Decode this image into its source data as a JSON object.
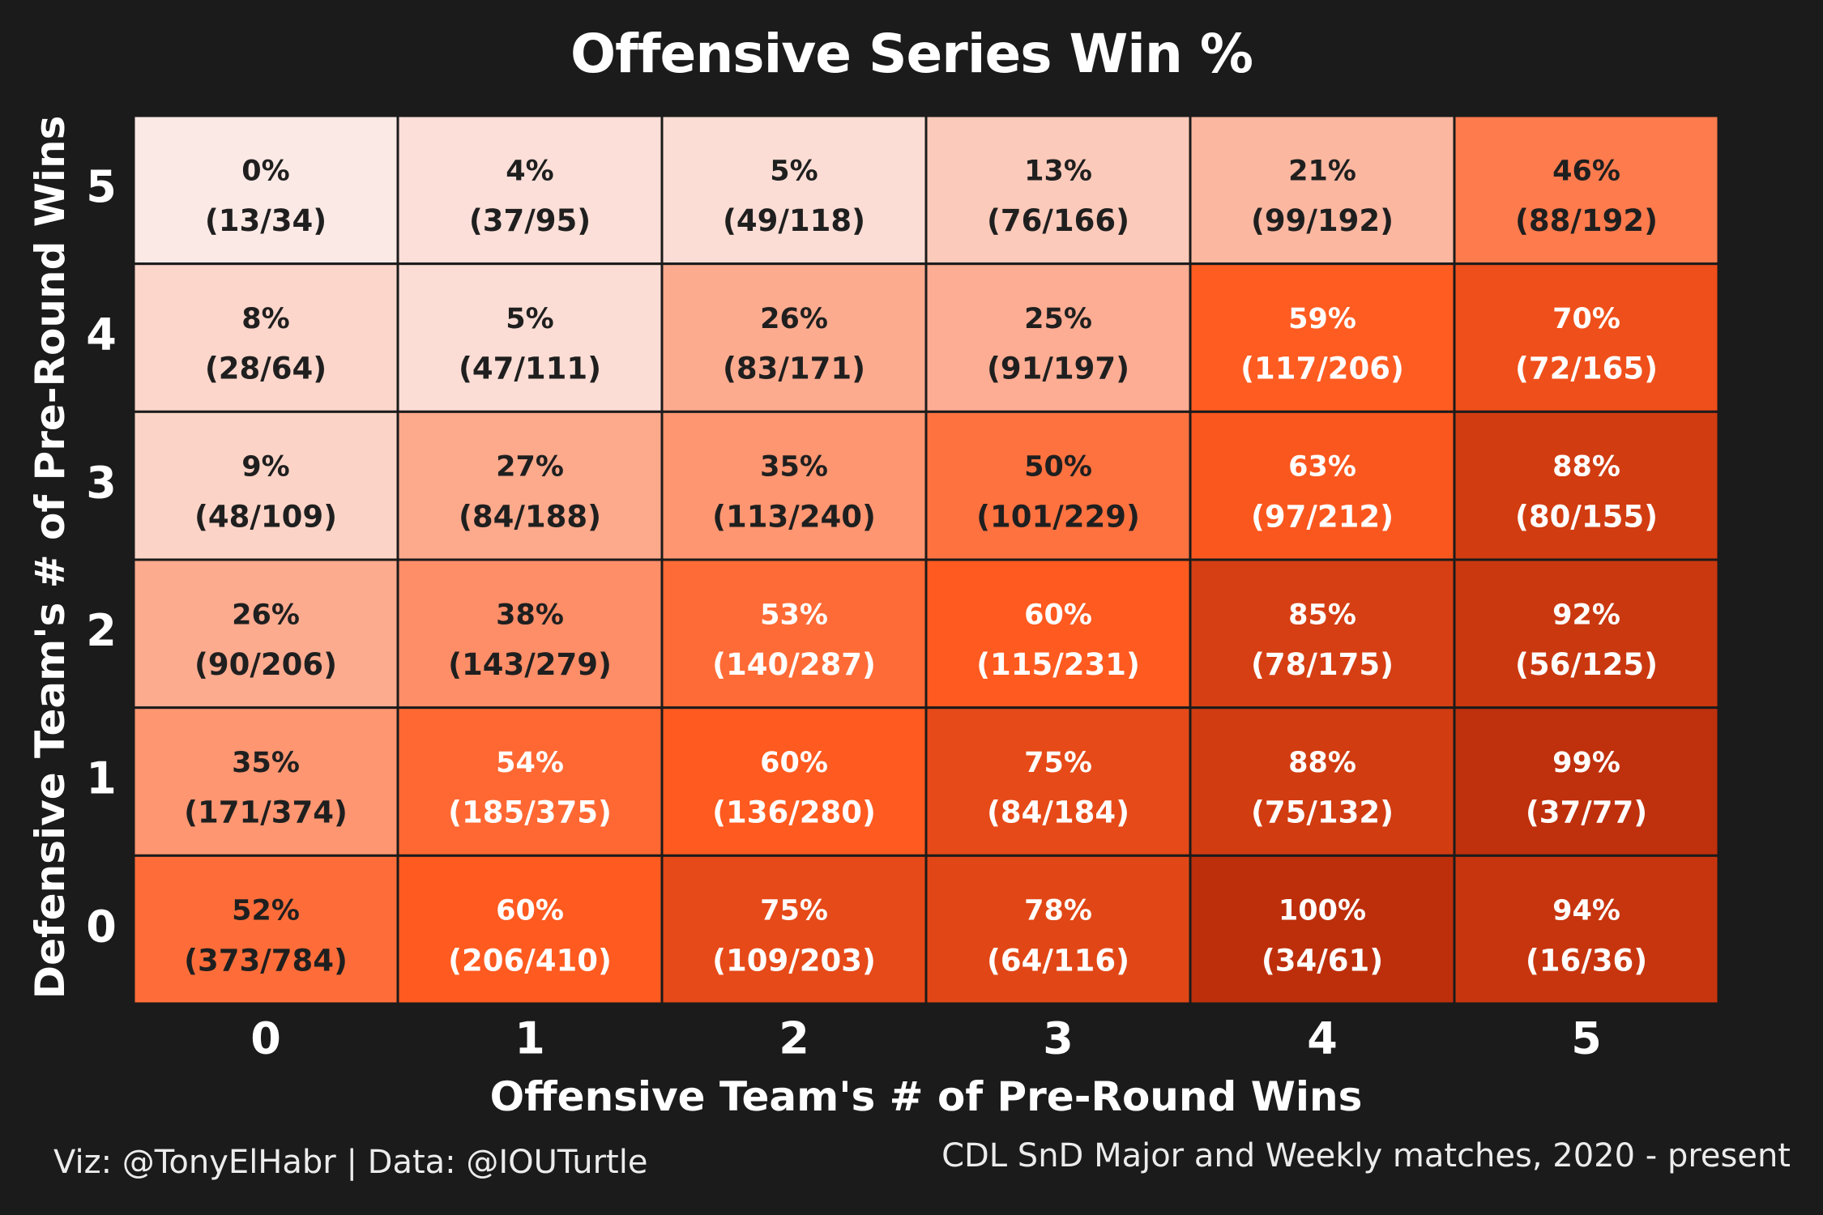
{
  "chart_data": {
    "type": "heatmap",
    "title": "Offensive Series Win %",
    "xlabel": "Offensive Team's # of Pre-Round Wins",
    "ylabel": "Defensive Team's # of Pre-Round Wins",
    "x_categories": [
      "0",
      "1",
      "2",
      "3",
      "4",
      "5"
    ],
    "y_categories": [
      "5",
      "4",
      "3",
      "2",
      "1",
      "0"
    ],
    "value_range": [
      0,
      100
    ],
    "color_scale": [
      "#fbe9e5",
      "#ff5a1f",
      "#bd2f0b"
    ],
    "cells": [
      [
        {
          "pct": 0,
          "label": "0%",
          "count": "(13/34)"
        },
        {
          "pct": 4,
          "label": "4%",
          "count": "(37/95)"
        },
        {
          "pct": 5,
          "label": "5%",
          "count": "(49/118)"
        },
        {
          "pct": 13,
          "label": "13%",
          "count": "(76/166)"
        },
        {
          "pct": 21,
          "label": "21%",
          "count": "(99/192)"
        },
        {
          "pct": 46,
          "label": "46%",
          "count": "(88/192)"
        }
      ],
      [
        {
          "pct": 8,
          "label": "8%",
          "count": "(28/64)"
        },
        {
          "pct": 5,
          "label": "5%",
          "count": "(47/111)"
        },
        {
          "pct": 26,
          "label": "26%",
          "count": "(83/171)"
        },
        {
          "pct": 25,
          "label": "25%",
          "count": "(91/197)"
        },
        {
          "pct": 59,
          "label": "59%",
          "count": "(117/206)"
        },
        {
          "pct": 70,
          "label": "70%",
          "count": "(72/165)"
        }
      ],
      [
        {
          "pct": 9,
          "label": "9%",
          "count": "(48/109)"
        },
        {
          "pct": 27,
          "label": "27%",
          "count": "(84/188)"
        },
        {
          "pct": 35,
          "label": "35%",
          "count": "(113/240)"
        },
        {
          "pct": 50,
          "label": "50%",
          "count": "(101/229)"
        },
        {
          "pct": 63,
          "label": "63%",
          "count": "(97/212)"
        },
        {
          "pct": 88,
          "label": "88%",
          "count": "(80/155)"
        }
      ],
      [
        {
          "pct": 26,
          "label": "26%",
          "count": "(90/206)"
        },
        {
          "pct": 38,
          "label": "38%",
          "count": "(143/279)"
        },
        {
          "pct": 53,
          "label": "53%",
          "count": "(140/287)"
        },
        {
          "pct": 60,
          "label": "60%",
          "count": "(115/231)"
        },
        {
          "pct": 85,
          "label": "85%",
          "count": "(78/175)"
        },
        {
          "pct": 92,
          "label": "92%",
          "count": "(56/125)"
        }
      ],
      [
        {
          "pct": 35,
          "label": "35%",
          "count": "(171/374)"
        },
        {
          "pct": 54,
          "label": "54%",
          "count": "(185/375)"
        },
        {
          "pct": 60,
          "label": "60%",
          "count": "(136/280)"
        },
        {
          "pct": 75,
          "label": "75%",
          "count": "(84/184)"
        },
        {
          "pct": 88,
          "label": "88%",
          "count": "(75/132)"
        },
        {
          "pct": 99,
          "label": "99%",
          "count": "(37/77)"
        }
      ],
      [
        {
          "pct": 52,
          "label": "52%",
          "count": "(373/784)"
        },
        {
          "pct": 60,
          "label": "60%",
          "count": "(206/410)"
        },
        {
          "pct": 75,
          "label": "75%",
          "count": "(109/203)"
        },
        {
          "pct": 78,
          "label": "78%",
          "count": "(64/116)"
        },
        {
          "pct": 100,
          "label": "100%",
          "count": "(34/61)"
        },
        {
          "pct": 94,
          "label": "94%",
          "count": "(16/36)"
        }
      ]
    ]
  },
  "caption": {
    "credits": "Viz: @TonyElHabr | Data: @IOUTurtle",
    "source": "CDL SnD Major and Weekly matches, 2020 - present"
  },
  "colors": {
    "background": "#1b1b1b",
    "dark_text": "#1f1f1f",
    "light_text": "#ffffff",
    "cell_border": "#1b1b1b"
  }
}
